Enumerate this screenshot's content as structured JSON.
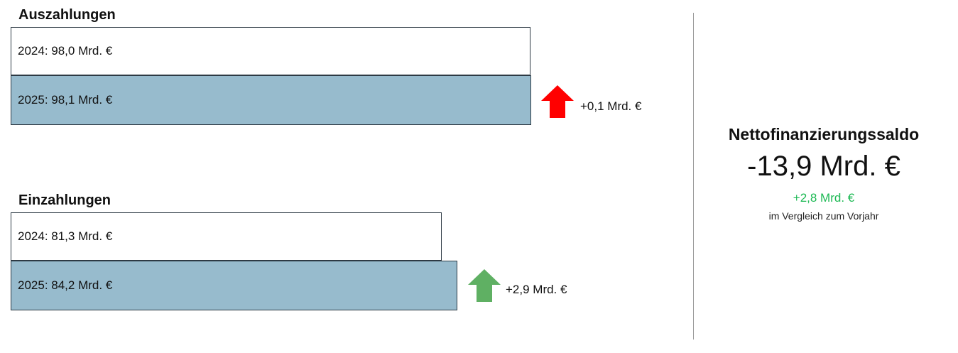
{
  "chart_data": {
    "type": "bar",
    "unit": "Mrd. €",
    "groups": [
      {
        "title": "Auszahlungen",
        "bars": [
          {
            "year": "2024",
            "value": 98.0,
            "label": "2024: 98,0 Mrd. €"
          },
          {
            "year": "2025",
            "value": 98.1,
            "label": "2025: 98,1 Mrd. €"
          }
        ],
        "change": {
          "label": "+0,1 Mrd. €",
          "direction": "up",
          "color": "#ff0000"
        }
      },
      {
        "title": "Einzahlungen",
        "bars": [
          {
            "year": "2024",
            "value": 81.3,
            "label": "2024: 81,3 Mrd. €"
          },
          {
            "year": "2025",
            "value": 84.2,
            "label": "2025: 84,2 Mrd. €"
          }
        ],
        "change": {
          "label": "+2,9 Mrd. €",
          "direction": "up",
          "color": "#5fb063"
        }
      }
    ],
    "colors": {
      "2024": "#ffffff",
      "2025": "#97bbcd"
    }
  },
  "summary": {
    "title": "Nettofinanzierungssaldo",
    "value": "-13,9 Mrd. €",
    "change": "+2,8 Mrd. €",
    "change_color": "#1db954",
    "caption": "im Vergleich zum Vorjahr"
  }
}
